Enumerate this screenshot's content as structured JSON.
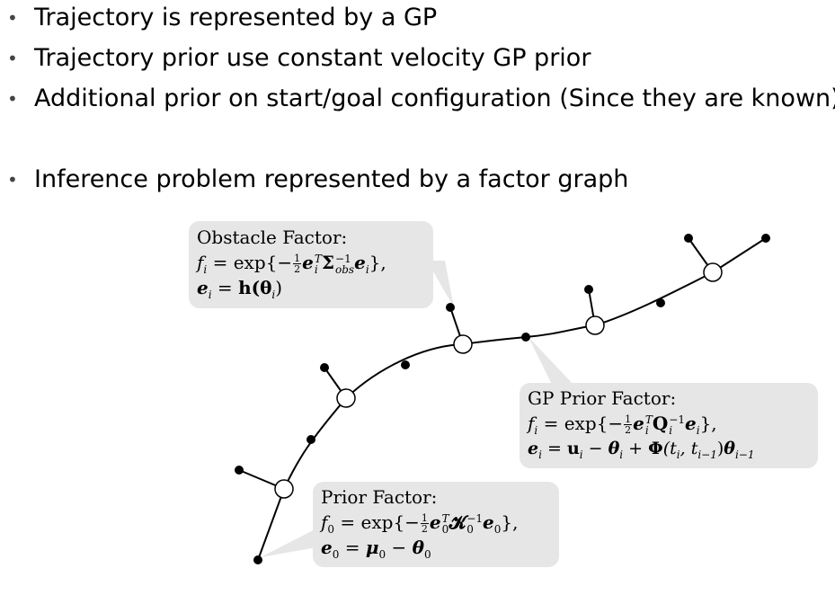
{
  "bullets": [
    {
      "text": "Trajectory is represented by a GP"
    },
    {
      "text": "Trajectory prior use constant velocity GP prior"
    },
    {
      "text": "Additional prior on start/goal configuration (Since they are known)"
    },
    {
      "text": "Inference problem represented by a factor graph"
    }
  ],
  "bullet_glyph": "•",
  "callouts": {
    "obstacle": {
      "title": "Obstacle Factor:",
      "f_lhs": "f",
      "f_sub": "i",
      "eq": " = exp{−",
      "half_num": "1",
      "half_den": "2",
      "e": "e",
      "e_sup": "T",
      "e_sub": "i",
      "sigma": "Σ",
      "sigma_sup": "−1",
      "sigma_sub": "obs",
      "e2_sub": "i",
      "close": "},",
      "line3_e": "e",
      "line3_sub": "i",
      "line3_rhs": " = ",
      "line3_h": "h",
      "line3_arg": "(θ",
      "line3_arg_sub": "i",
      "line3_end": ")"
    },
    "gp": {
      "title": "GP Prior Factor:",
      "f_lhs": "f",
      "f_sub": "i",
      "eq": " = exp{−",
      "half_num": "1",
      "half_den": "2",
      "e": "e",
      "e_sup": "T",
      "e_sub": "i",
      "Q": "Q",
      "Q_sup": "−1",
      "Q_sub": "i",
      "e2_sub": "i",
      "close": "},",
      "line3_e": "e",
      "line3_sub": "i",
      "line3_eq": " = ",
      "u": "u",
      "u_sub": "i",
      "minus": " − ",
      "theta": "θ",
      "theta_sub": "i",
      "plus": " + ",
      "phi": "Φ",
      "phi_args": "(t",
      "t1_sub": "i",
      "comma": ", t",
      "t2_sub": "i−1",
      "paren": ")",
      "theta2_sub": "i−1"
    },
    "prior": {
      "title": "Prior Factor:",
      "f_lhs": "f",
      "f_sub": "0",
      "eq": " = exp{−",
      "half_num": "1",
      "half_den": "2",
      "e": "e",
      "e_sup": "T",
      "e_sub": "0",
      "K": "𝓚",
      "K_sup": "−1",
      "K_sub": "0",
      "e2_sub": "0",
      "close": "},",
      "line3_e": "e",
      "line3_sub": "0",
      "line3_eq": " = ",
      "mu": "μ",
      "mu_sub": "0",
      "minus": " − ",
      "theta": "θ",
      "theta_sub": "0"
    }
  },
  "colors": {
    "callout_bg": "#e6e6e6",
    "node_fill": "#ffffff",
    "factor_fill": "#000000",
    "line": "#000000"
  }
}
